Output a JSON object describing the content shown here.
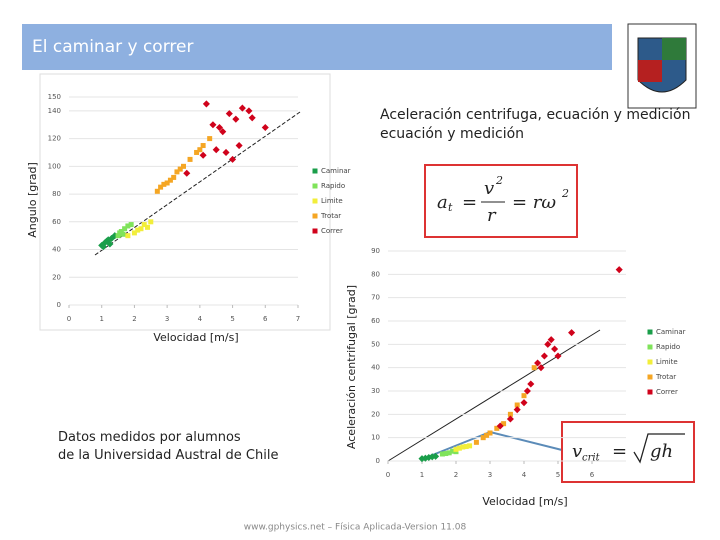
{
  "header": {
    "title": "El caminar y correr"
  },
  "subtitle": "Aceleración centrifuga, ecuación y medición",
  "note": "Datos medidos por alumnos de la Universidad Austral de Chile",
  "footer": "www.gphysics.net – Física Aplicada-Version 11.08",
  "formula1": {
    "a": "a",
    "a_sub": "t",
    "eq1": "=",
    "num": "v",
    "num_sup": "2",
    "den": "r",
    "eq2": "= rω",
    "rhs_sup": "2"
  },
  "formula2": {
    "v": "v",
    "v_sub": "crit",
    "eq": "=",
    "rad": "gh"
  },
  "chart_data": [
    {
      "type": "scatter",
      "xlabel": "Velocidad [m/s]",
      "ylabel": "Angulo [grad]",
      "xlim": [
        0,
        7
      ],
      "xticks": [
        0,
        1,
        2,
        3,
        4,
        5,
        6,
        7
      ],
      "ylim": [
        0,
        150
      ],
      "yticks": [
        0,
        20,
        40,
        60,
        80,
        100,
        120,
        140,
        150
      ],
      "legend": "right",
      "series": [
        {
          "name": "Caminar",
          "color": "#1a9e4a",
          "x": [
            1,
            1.1,
            1.2,
            1.3,
            1.4,
            1.05,
            1.15,
            1.25
          ],
          "values": [
            43,
            45,
            47,
            48,
            50,
            42,
            46,
            44
          ]
        },
        {
          "name": "Rapido",
          "color": "#7fe35a",
          "x": [
            1.5,
            1.6,
            1.7,
            1.8,
            1.55,
            1.9,
            1.65
          ],
          "values": [
            50,
            53,
            55,
            57,
            52,
            58,
            51
          ]
        },
        {
          "name": "Limite",
          "color": "#f2ee3a",
          "x": [
            1.8,
            2,
            2.2,
            2.4,
            2.1,
            2.3,
            2.5
          ],
          "values": [
            50,
            52,
            55,
            56,
            54,
            58,
            60
          ]
        },
        {
          "name": "Trotar",
          "color": "#f5a623",
          "x": [
            2.7,
            2.8,
            3,
            3.2,
            3.3,
            3.5,
            3.7,
            3.9,
            4.1,
            4.3,
            3.4,
            2.9,
            4,
            3.1
          ],
          "values": [
            82,
            85,
            88,
            92,
            96,
            100,
            105,
            110,
            115,
            120,
            98,
            87,
            112,
            90
          ]
        },
        {
          "name": "Correr",
          "color": "#d0021b",
          "x": [
            4.2,
            4.4,
            4.6,
            4.7,
            4.8,
            5,
            5.2,
            5.3,
            5.5,
            5.6,
            6,
            4.9,
            4.5,
            3.6,
            4.1,
            5.1
          ],
          "values": [
            145,
            130,
            128,
            125,
            110,
            105,
            115,
            142,
            140,
            135,
            128,
            138,
            112,
            95,
            108,
            134
          ]
        }
      ]
    },
    {
      "type": "scatter",
      "xlabel": "Velocidad [m/s]",
      "ylabel": "Aceleración centrifugal [grad]",
      "xlim": [
        0,
        7
      ],
      "xticks": [
        0,
        1,
        2,
        3,
        4,
        5,
        6
      ],
      "ylim": [
        0,
        90
      ],
      "yticks": [
        0,
        10,
        20,
        30,
        40,
        50,
        60,
        70,
        80,
        90
      ],
      "legend": "right",
      "series": [
        {
          "name": "Caminar",
          "color": "#1a9e4a",
          "x": [
            1,
            1.2,
            1.4,
            1.1,
            1.3
          ],
          "values": [
            1,
            1.5,
            2,
            1.2,
            1.8
          ]
        },
        {
          "name": "Rapido",
          "color": "#7fe35a",
          "x": [
            1.6,
            1.8,
            2,
            1.7,
            1.9
          ],
          "values": [
            3,
            3.5,
            4,
            3.2,
            4.2
          ]
        },
        {
          "name": "Limite",
          "color": "#f2ee3a",
          "x": [
            2,
            2.2,
            2.4,
            2.1,
            2.3
          ],
          "values": [
            5,
            6,
            6.5,
            5.5,
            6.2
          ]
        },
        {
          "name": "Trotar",
          "color": "#f5a623",
          "x": [
            2.6,
            2.8,
            3,
            3.2,
            3.4,
            3.6,
            3.8,
            4,
            4.3,
            2.9
          ],
          "values": [
            8,
            10,
            12,
            14,
            16,
            20,
            24,
            28,
            40,
            11
          ]
        },
        {
          "name": "Correr",
          "color": "#d0021b",
          "x": [
            3.3,
            3.6,
            3.8,
            4,
            4.1,
            4.2,
            4.5,
            4.6,
            4.7,
            4.8,
            4.9,
            5,
            5.4,
            6.8,
            4.4
          ],
          "values": [
            15,
            18,
            22,
            25,
            30,
            33,
            40,
            45,
            50,
            52,
            48,
            45,
            55,
            82,
            42
          ]
        }
      ]
    }
  ]
}
